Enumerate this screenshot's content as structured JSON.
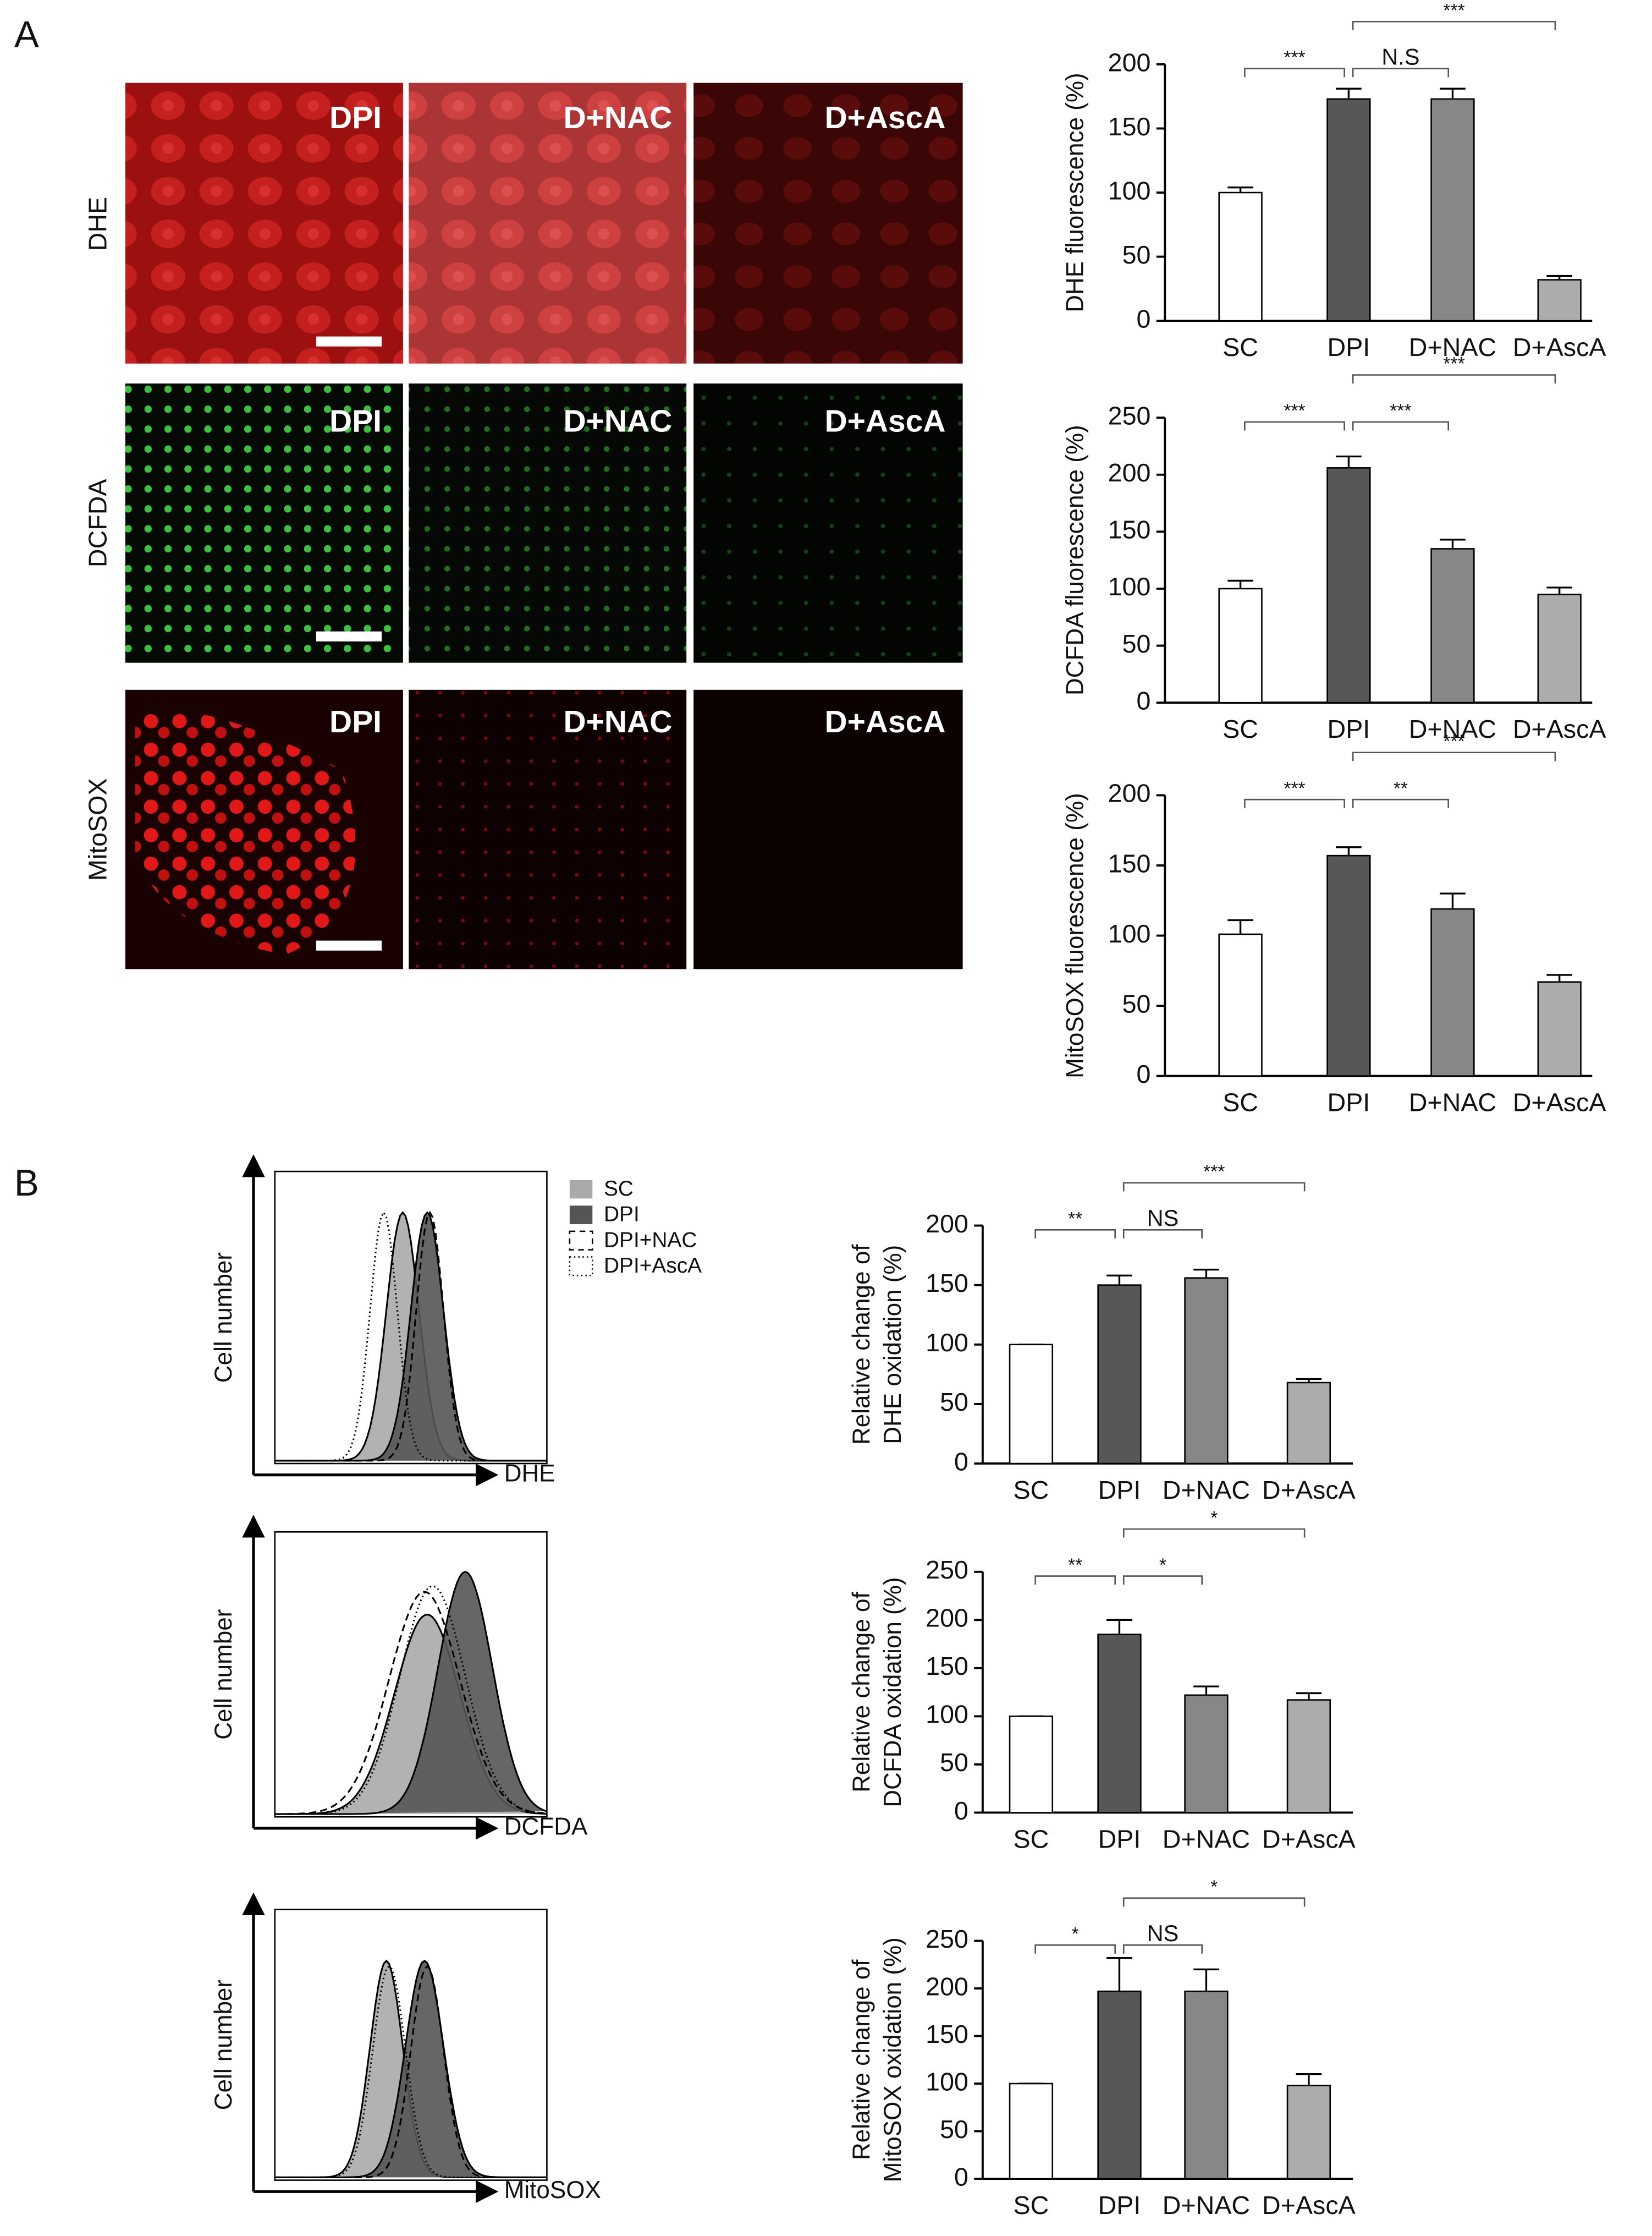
{
  "panel_labels": [
    "A",
    "B"
  ],
  "images": {
    "rows": [
      "DHE",
      "DCFDA",
      "MitoSOX"
    ],
    "columns": [
      "DPI",
      "D+NAC",
      "D+AscA"
    ]
  },
  "flow": {
    "legend": [
      "SC",
      "DPI",
      "DPI+NAC",
      "DPI+AscA"
    ],
    "y_label": "Cell number",
    "x_labels": [
      "DHE",
      "DCFDA",
      "MitoSOX"
    ]
  },
  "chart_data": [
    {
      "type": "bar",
      "ylabel": [
        "DHE fluorescence (%)"
      ],
      "categories": [
        "SC",
        "DPI",
        "D+NAC",
        "D+AscA"
      ],
      "values": [
        100,
        173,
        173,
        32
      ],
      "errors": [
        4,
        8,
        8,
        3
      ],
      "colors": [
        "#ffffff",
        "#575757",
        "#878787",
        "#acacac"
      ],
      "ylim": [
        0,
        200
      ],
      "yticks": [
        0,
        50,
        100,
        150,
        200
      ],
      "significance": [
        {
          "groups": [
            "SC",
            "DPI"
          ],
          "label": "***"
        },
        {
          "groups": [
            "DPI",
            "D+NAC"
          ],
          "label": "N.S"
        },
        {
          "groups": [
            "DPI",
            "D+AscA"
          ],
          "label": "***"
        }
      ]
    },
    {
      "type": "bar",
      "ylabel": [
        "DCFDA fluorescence (%)"
      ],
      "categories": [
        "SC",
        "DPI",
        "D+NAC",
        "D+AscA"
      ],
      "values": [
        100,
        206,
        135,
        95
      ],
      "errors": [
        7,
        10,
        8,
        6
      ],
      "colors": [
        "#ffffff",
        "#575757",
        "#878787",
        "#acacac"
      ],
      "ylim": [
        0,
        250
      ],
      "yticks": [
        0,
        50,
        100,
        150,
        200,
        250
      ],
      "significance": [
        {
          "groups": [
            "SC",
            "DPI"
          ],
          "label": "***"
        },
        {
          "groups": [
            "DPI",
            "D+NAC"
          ],
          "label": "***"
        },
        {
          "groups": [
            "DPI",
            "D+AscA"
          ],
          "label": "***"
        }
      ]
    },
    {
      "type": "bar",
      "ylabel": [
        "MitoSOX fluorescence (%)"
      ],
      "categories": [
        "SC",
        "DPI",
        "D+NAC",
        "D+AscA"
      ],
      "values": [
        101,
        157,
        119,
        67
      ],
      "errors": [
        10,
        6,
        11,
        5
      ],
      "colors": [
        "#ffffff",
        "#575757",
        "#878787",
        "#acacac"
      ],
      "ylim": [
        0,
        200
      ],
      "yticks": [
        0,
        50,
        100,
        150,
        200
      ],
      "significance": [
        {
          "groups": [
            "SC",
            "DPI"
          ],
          "label": "***"
        },
        {
          "groups": [
            "DPI",
            "D+NAC"
          ],
          "label": "**"
        },
        {
          "groups": [
            "DPI",
            "D+AscA"
          ],
          "label": "***"
        }
      ]
    },
    {
      "type": "bar",
      "ylabel": [
        "Relative change of",
        "DHE oxidation (%)"
      ],
      "categories": [
        "SC",
        "DPI",
        "D+NAC",
        "D+AscA"
      ],
      "values": [
        100,
        150,
        156,
        68
      ],
      "errors": [
        0,
        8,
        7,
        3
      ],
      "colors": [
        "#ffffff",
        "#575757",
        "#878787",
        "#acacac"
      ],
      "ylim": [
        0,
        200
      ],
      "yticks": [
        0,
        50,
        100,
        150,
        200
      ],
      "significance": [
        {
          "groups": [
            "SC",
            "DPI"
          ],
          "label": "**"
        },
        {
          "groups": [
            "DPI",
            "D+NAC"
          ],
          "label": "NS"
        },
        {
          "groups": [
            "DPI",
            "D+AscA"
          ],
          "label": "***"
        }
      ]
    },
    {
      "type": "bar",
      "ylabel": [
        "Relative change of",
        "DCFDA oxidation (%)"
      ],
      "categories": [
        "SC",
        "DPI",
        "D+NAC",
        "D+AscA"
      ],
      "values": [
        100,
        185,
        122,
        117
      ],
      "errors": [
        0,
        15,
        9,
        7
      ],
      "colors": [
        "#ffffff",
        "#575757",
        "#878787",
        "#acacac"
      ],
      "ylim": [
        0,
        250
      ],
      "yticks": [
        0,
        50,
        100,
        150,
        200,
        250
      ],
      "significance": [
        {
          "groups": [
            "SC",
            "DPI"
          ],
          "label": "**"
        },
        {
          "groups": [
            "DPI",
            "D+NAC"
          ],
          "label": "*"
        },
        {
          "groups": [
            "DPI",
            "D+AscA"
          ],
          "label": "*"
        }
      ]
    },
    {
      "type": "bar",
      "ylabel": [
        "Relative change of",
        "MitoSOX oxidation (%)"
      ],
      "categories": [
        "SC",
        "DPI",
        "D+NAC",
        "D+AscA"
      ],
      "values": [
        100,
        197,
        197,
        98
      ],
      "errors": [
        0,
        35,
        23,
        12
      ],
      "colors": [
        "#ffffff",
        "#575757",
        "#878787",
        "#acacac"
      ],
      "ylim": [
        0,
        250
      ],
      "yticks": [
        0,
        50,
        100,
        150,
        200,
        250
      ],
      "significance": [
        {
          "groups": [
            "SC",
            "DPI"
          ],
          "label": "*"
        },
        {
          "groups": [
            "DPI",
            "D+NAC"
          ],
          "label": "NS"
        },
        {
          "groups": [
            "DPI",
            "D+AscA"
          ],
          "label": "*"
        }
      ]
    }
  ]
}
